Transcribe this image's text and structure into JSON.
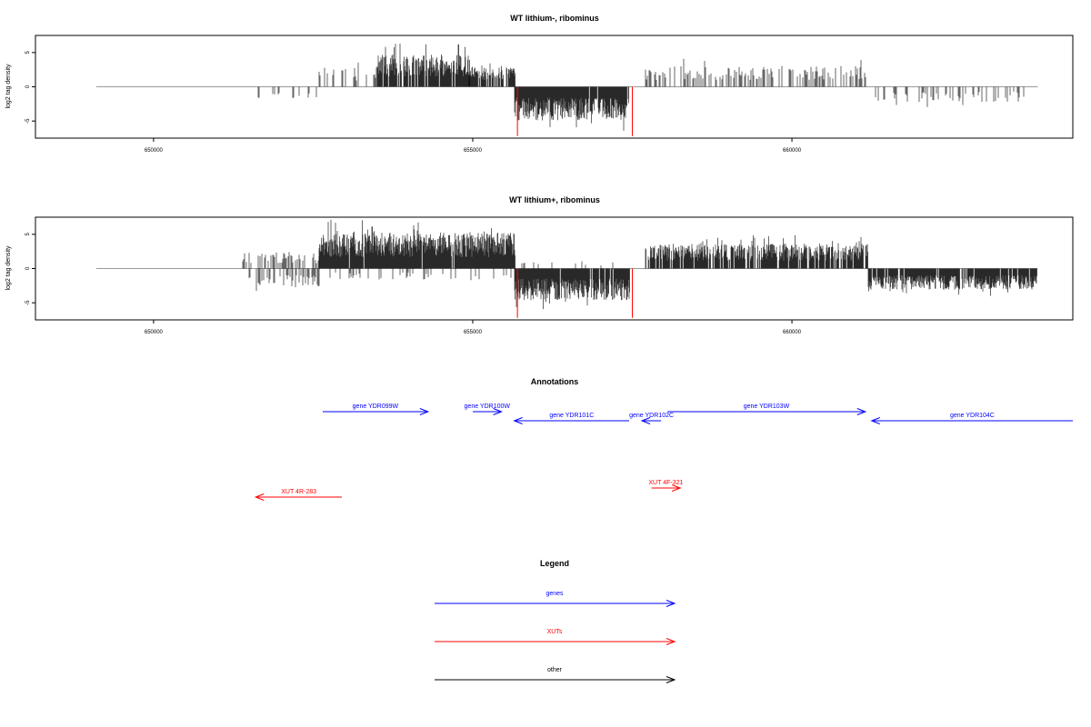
{
  "colors": {
    "gene": "#0000ff",
    "xut": "#ff0000",
    "other": "#000000",
    "bar": "#000000",
    "highlight": "#ff0000",
    "baseline": "#9a9a9a"
  },
  "chart_data": [
    {
      "type": "bar",
      "title": "WT lithium-, ribominus",
      "ylabel": "log2 tag density",
      "xlim": [
        648150,
        664400
      ],
      "ylim": [
        -7.5,
        7.5
      ],
      "yticks": [
        -5,
        0,
        5
      ],
      "xticks": [
        650000,
        655000,
        660000
      ],
      "xtick_labels": [
        "650000",
        "655000",
        "660000"
      ],
      "grid": false,
      "baseline_range": [
        649100,
        663850
      ],
      "segments": [
        {
          "from": 651600,
          "to": 652600,
          "sign": -1,
          "amp": 1.8,
          "density": 0.12,
          "seed": 11
        },
        {
          "from": 652600,
          "to": 653500,
          "sign": 1,
          "amp": 2.6,
          "density": 0.25,
          "seed": 12
        },
        {
          "from": 653500,
          "to": 654950,
          "sign": 1,
          "amp": 4.3,
          "density": 0.9,
          "seed": 13
        },
        {
          "from": 654950,
          "to": 655650,
          "sign": 1,
          "amp": 2.8,
          "density": 0.7,
          "seed": 14
        },
        {
          "from": 655650,
          "to": 657450,
          "sign": -1,
          "amp": 4.5,
          "density": 0.95,
          "seed": 15
        },
        {
          "from": 657700,
          "to": 661200,
          "sign": 1,
          "amp": 2.8,
          "density": 0.45,
          "seed": 16
        },
        {
          "from": 661200,
          "to": 663800,
          "sign": -1,
          "amp": 2.0,
          "density": 0.2,
          "seed": 17
        }
      ],
      "highlights": [
        {
          "x": 655700,
          "y": -7.2
        },
        {
          "x": 657500,
          "y": -7.2
        }
      ]
    },
    {
      "type": "bar",
      "title": "WT lithium+, ribominus",
      "ylabel": "log2 tag density",
      "xlim": [
        648150,
        664400
      ],
      "ylim": [
        -7.5,
        7.5
      ],
      "yticks": [
        -5,
        0,
        5
      ],
      "xticks": [
        650000,
        655000,
        660000
      ],
      "xtick_labels": [
        "650000",
        "655000",
        "660000"
      ],
      "grid": false,
      "baseline_range": [
        649100,
        663850
      ],
      "segments": [
        {
          "from": 651400,
          "to": 652600,
          "sign": 1,
          "amp": 2.2,
          "density": 0.45,
          "seed": 21
        },
        {
          "from": 651500,
          "to": 652600,
          "sign": -1,
          "amp": 2.5,
          "density": 0.55,
          "seed": 22
        },
        {
          "from": 652600,
          "to": 655650,
          "sign": 1,
          "amp": 4.8,
          "density": 0.95,
          "seed": 23
        },
        {
          "from": 652600,
          "to": 655650,
          "sign": -1,
          "amp": 1.5,
          "density": 0.15,
          "seed": 24
        },
        {
          "from": 655650,
          "to": 657450,
          "sign": -1,
          "amp": 4.2,
          "density": 0.95,
          "seed": 25
        },
        {
          "from": 655700,
          "to": 657450,
          "sign": 1,
          "amp": 1.0,
          "density": 0.1,
          "seed": 26
        },
        {
          "from": 657700,
          "to": 661200,
          "sign": 1,
          "amp": 3.3,
          "density": 0.8,
          "seed": 27
        },
        {
          "from": 661200,
          "to": 663850,
          "sign": -1,
          "amp": 2.8,
          "density": 0.85,
          "seed": 28
        }
      ],
      "highlights": [
        {
          "x": 655700,
          "y": -7.2
        },
        {
          "x": 657500,
          "y": -7.2
        }
      ]
    }
  ],
  "annotations": {
    "title": "Annotations",
    "items": [
      {
        "label": "gene YDR099W",
        "start": 652650,
        "end": 654300,
        "strand": "+",
        "type": "gene",
        "row": 0
      },
      {
        "label": "gene YDR100W",
        "start": 655000,
        "end": 655450,
        "strand": "+",
        "type": "gene",
        "row": 0
      },
      {
        "label": "gene YDR101C",
        "start": 655650,
        "end": 657450,
        "strand": "-",
        "type": "gene",
        "row": 1
      },
      {
        "label": "gene YDR102C",
        "start": 657650,
        "end": 657950,
        "strand": "-",
        "type": "gene",
        "row": 1
      },
      {
        "label": "gene YDR103W",
        "start": 658050,
        "end": 661150,
        "strand": "+",
        "type": "gene",
        "row": 0
      },
      {
        "label": "gene YDR104C",
        "start": 661250,
        "end": 664400,
        "strand": "-",
        "type": "gene",
        "row": 1
      },
      {
        "label": "XUT 4R-283",
        "start": 651600,
        "end": 652950,
        "strand": "-",
        "type": "xut",
        "row": 3
      },
      {
        "label": "XUT 4F-321",
        "start": 657800,
        "end": 658250,
        "strand": "+",
        "type": "xut",
        "row": 2
      }
    ]
  },
  "legend": {
    "title": "Legend",
    "items": [
      {
        "label": "genes",
        "type": "gene"
      },
      {
        "label": "XUTs",
        "type": "xut"
      },
      {
        "label": "other",
        "type": "other"
      }
    ]
  }
}
